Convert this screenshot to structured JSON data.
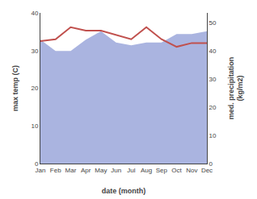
{
  "chart_data": {
    "type": "line",
    "xlabel": "date (month)",
    "ylabel": "max temp (C)",
    "y2label": "med. precipitation\n(kg/m2)",
    "categories": [
      "Jan",
      "Feb",
      "Mar",
      "Apr",
      "May",
      "Jun",
      "Jul",
      "Aug",
      "Sep",
      "Oct",
      "Nov",
      "Dec"
    ],
    "series": [
      {
        "type": "area",
        "axis": "y2",
        "color": "#aab4e0",
        "values": [
          44,
          40,
          40,
          44,
          47,
          43,
          42,
          43,
          43,
          46,
          46,
          47
        ]
      },
      {
        "type": "line",
        "color": "#c0504d",
        "values": [
          32.5,
          33.0,
          36.2,
          35.3,
          35.3,
          34.2,
          33.0,
          36.2,
          33.0,
          31.0,
          32.0,
          32.0
        ]
      }
    ],
    "ylim": [
      0,
      40
    ],
    "yticks": [
      0,
      10,
      20,
      30,
      40
    ],
    "y2lim": [
      0,
      53.5
    ],
    "y2ticks": [
      0,
      10,
      20,
      30,
      40,
      50
    ],
    "grid": false
  }
}
